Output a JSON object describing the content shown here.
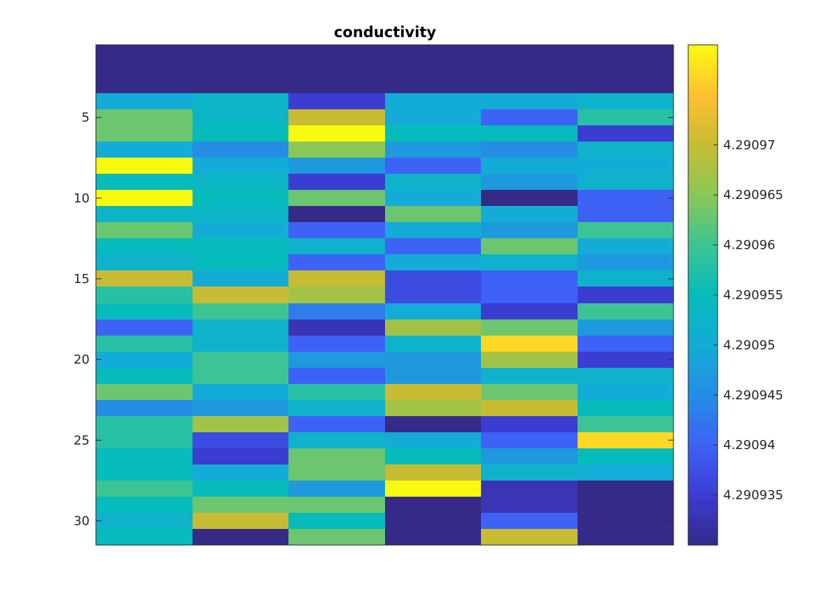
{
  "chart_data": {
    "type": "heatmap",
    "title": "conductivity",
    "xlabel": "",
    "ylabel": "",
    "columns": 6,
    "rows": 31,
    "y_ticks": [
      5,
      10,
      15,
      20,
      25,
      30
    ],
    "y_tick_labels": [
      "5",
      "10",
      "15",
      "20",
      "25",
      "30"
    ],
    "x_ticks": [],
    "colorbar": {
      "limits": [
        4.29093,
        4.29098
      ],
      "ticks": [
        4.290935,
        4.29094,
        4.290945,
        4.29095,
        4.290955,
        4.29096,
        4.290965,
        4.29097
      ],
      "tick_labels": [
        "4.290935",
        "4.29094",
        "4.290945",
        "4.29095",
        "4.290955",
        "4.29096",
        "4.290965",
        "4.29097"
      ],
      "colormap": "parula"
    },
    "values": [
      [
        4.29093,
        4.29093,
        4.29093,
        4.29093,
        4.29093,
        4.29093
      ],
      [
        4.29093,
        4.29093,
        4.29093,
        4.29093,
        4.29093,
        4.29093
      ],
      [
        4.29093,
        4.29093,
        4.29093,
        4.29093,
        4.29093,
        4.29093
      ],
      [
        4.29095,
        4.290953,
        4.290935,
        4.29095,
        4.29095,
        4.290952
      ],
      [
        4.290963,
        4.290953,
        4.29097,
        4.29095,
        4.29094,
        4.290958
      ],
      [
        4.290963,
        4.290955,
        4.29098,
        4.290955,
        4.290955,
        4.290935
      ],
      [
        4.29095,
        4.290945,
        4.290965,
        4.290947,
        4.290945,
        4.290952
      ],
      [
        4.29098,
        4.29095,
        4.290947,
        4.29094,
        4.29095,
        4.29095
      ],
      [
        4.290955,
        4.290953,
        4.290935,
        4.290952,
        4.290947,
        4.290952
      ],
      [
        4.29098,
        4.290955,
        4.290963,
        4.29095,
        4.29093,
        4.29094
      ],
      [
        4.290953,
        4.290953,
        4.29093,
        4.290963,
        4.29095,
        4.29094
      ],
      [
        4.290963,
        4.29095,
        4.29094,
        4.29095,
        4.290947,
        4.29096
      ],
      [
        4.290955,
        4.290955,
        4.290952,
        4.29094,
        4.290963,
        4.29095
      ],
      [
        4.290952,
        4.290955,
        4.29094,
        4.29095,
        4.290952,
        4.290947
      ],
      [
        4.29097,
        4.29095,
        4.29097,
        4.290937,
        4.29094,
        4.290952
      ],
      [
        4.290958,
        4.29097,
        4.290967,
        4.290937,
        4.29094,
        4.290935
      ],
      [
        4.290955,
        4.29096,
        4.290943,
        4.29095,
        4.290935,
        4.29096
      ],
      [
        4.29094,
        4.290952,
        4.290933,
        4.290967,
        4.290963,
        4.290947
      ],
      [
        4.290958,
        4.290952,
        4.29094,
        4.290952,
        4.290977,
        4.29094
      ],
      [
        4.29095,
        4.29096,
        4.290947,
        4.290947,
        4.290967,
        4.290935
      ],
      [
        4.290955,
        4.29096,
        4.29094,
        4.290947,
        4.290952,
        4.290952
      ],
      [
        4.290963,
        4.29095,
        4.290958,
        4.29097,
        4.290963,
        4.29095
      ],
      [
        4.290945,
        4.290947,
        4.290952,
        4.290967,
        4.29097,
        4.290955
      ],
      [
        4.290958,
        4.290967,
        4.29094,
        4.29093,
        4.290935,
        4.29096
      ],
      [
        4.290958,
        4.290937,
        4.290952,
        4.29095,
        4.29094,
        4.290977
      ],
      [
        4.290955,
        4.290935,
        4.290963,
        4.290955,
        4.290947,
        4.290955
      ],
      [
        4.290955,
        4.29095,
        4.290963,
        4.29097,
        4.290952,
        4.29095
      ],
      [
        4.29096,
        4.290955,
        4.290947,
        4.29098,
        4.290933,
        4.29093
      ],
      [
        4.290955,
        4.290963,
        4.290963,
        4.29093,
        4.290933,
        4.29093
      ],
      [
        4.290952,
        4.29097,
        4.290955,
        4.29093,
        4.29094,
        4.29093
      ],
      [
        4.290955,
        4.29093,
        4.290963,
        4.29093,
        4.29097,
        4.29093
      ]
    ]
  }
}
